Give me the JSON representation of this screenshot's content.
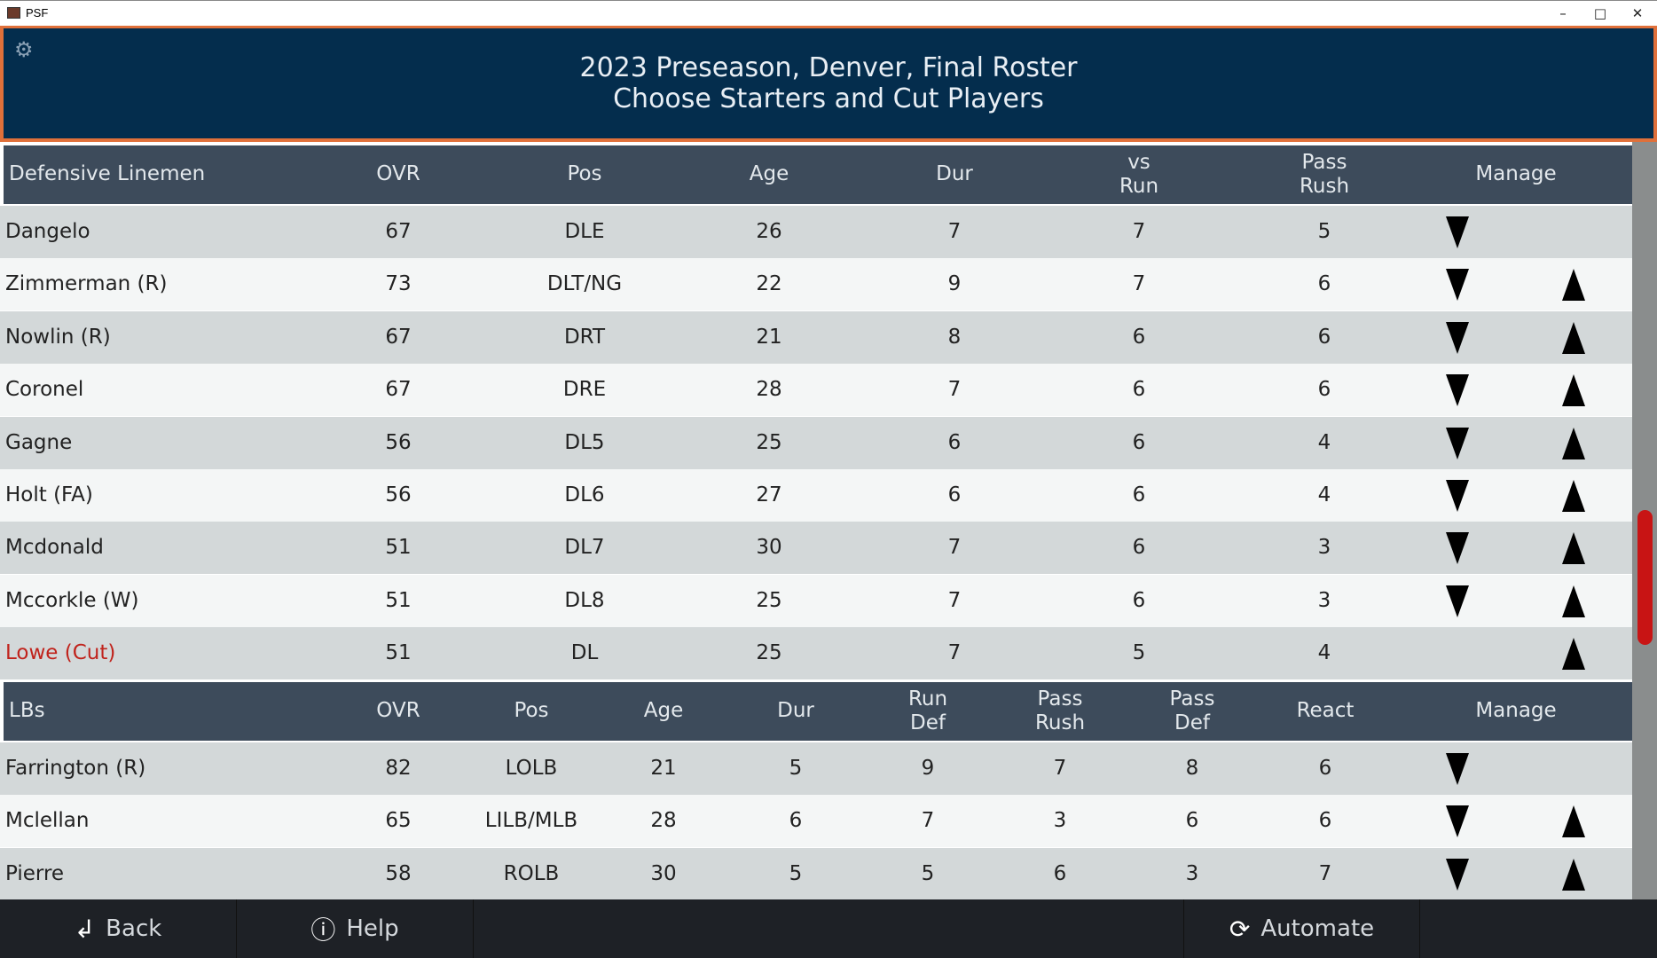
{
  "window": {
    "title": "PSF",
    "minimize": "–",
    "maximize": "□",
    "close": "✕"
  },
  "header": {
    "line1": "2023 Preseason, Denver, Final Roster",
    "line2": "Choose Starters and Cut Players",
    "settings_icon": "gear-icon"
  },
  "colors": {
    "banner": "#042d4d",
    "banner_border": "#e0703a",
    "cut": "#c0231c",
    "scroll_thumb": "#c81414"
  },
  "dl": {
    "headers": [
      "Defensive Linemen",
      "OVR",
      "Pos",
      "Age",
      "Dur",
      "vs\nRun",
      "Pass\nRush",
      "Manage"
    ],
    "rows": [
      {
        "name": "Dangelo",
        "vals": [
          "67",
          "DLE",
          "26",
          "7",
          "7",
          "5"
        ],
        "down": true,
        "up": false,
        "cut": false
      },
      {
        "name": "Zimmerman (R)",
        "vals": [
          "73",
          "DLT/NG",
          "22",
          "9",
          "7",
          "6"
        ],
        "down": true,
        "up": true,
        "cut": false
      },
      {
        "name": "Nowlin (R)",
        "vals": [
          "67",
          "DRT",
          "21",
          "8",
          "6",
          "6"
        ],
        "down": true,
        "up": true,
        "cut": false
      },
      {
        "name": "Coronel",
        "vals": [
          "67",
          "DRE",
          "28",
          "7",
          "6",
          "6"
        ],
        "down": true,
        "up": true,
        "cut": false
      },
      {
        "name": "Gagne",
        "vals": [
          "56",
          "DL5",
          "25",
          "6",
          "6",
          "4"
        ],
        "down": true,
        "up": true,
        "cut": false
      },
      {
        "name": "Holt (FA)",
        "vals": [
          "56",
          "DL6",
          "27",
          "6",
          "6",
          "4"
        ],
        "down": true,
        "up": true,
        "cut": false
      },
      {
        "name": "Mcdonald",
        "vals": [
          "51",
          "DL7",
          "30",
          "7",
          "6",
          "3"
        ],
        "down": true,
        "up": true,
        "cut": false
      },
      {
        "name": "Mccorkle (W)",
        "vals": [
          "51",
          "DL8",
          "25",
          "7",
          "6",
          "3"
        ],
        "down": true,
        "up": true,
        "cut": false
      },
      {
        "name": "Lowe (Cut)",
        "vals": [
          "51",
          "DL",
          "25",
          "7",
          "5",
          "4"
        ],
        "down": false,
        "up": true,
        "cut": true
      }
    ]
  },
  "lb": {
    "headers": [
      "LBs",
      "OVR",
      "Pos",
      "Age",
      "Dur",
      "Run\nDef",
      "Pass\nRush",
      "Pass\nDef",
      "React",
      "Manage"
    ],
    "rows": [
      {
        "name": "Farrington (R)",
        "vals": [
          "82",
          "LOLB",
          "21",
          "5",
          "9",
          "7",
          "8",
          "6"
        ],
        "down": true,
        "up": false,
        "cut": false
      },
      {
        "name": "Mclellan",
        "vals": [
          "65",
          "LILB/MLB",
          "28",
          "6",
          "7",
          "3",
          "6",
          "6"
        ],
        "down": true,
        "up": true,
        "cut": false
      },
      {
        "name": "Pierre",
        "vals": [
          "58",
          "ROLB",
          "30",
          "5",
          "5",
          "6",
          "3",
          "7"
        ],
        "down": true,
        "up": true,
        "cut": false
      }
    ]
  },
  "footer": {
    "back": "Back",
    "help": "Help",
    "automate": "Automate"
  }
}
